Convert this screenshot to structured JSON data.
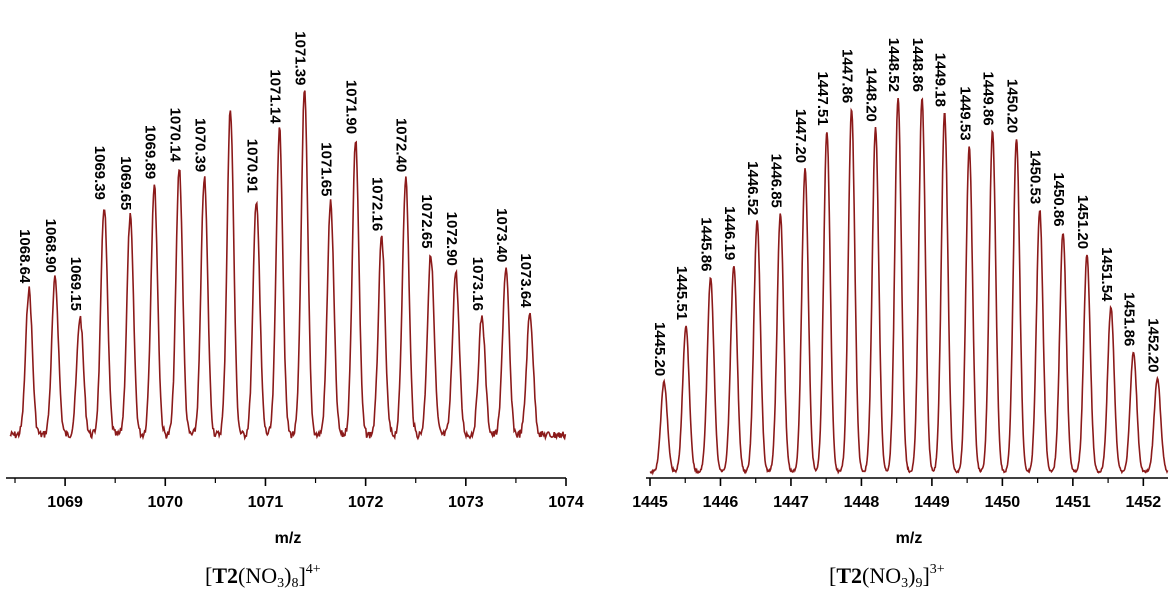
{
  "chart_data": [
    {
      "type": "line",
      "xlabel": "m/z",
      "xlim": [
        1068.45,
        1074.0
      ],
      "xticks": [
        "1069",
        "1070",
        "1071",
        "1072",
        "1073",
        "1074"
      ],
      "line_color": "#8b1a1a",
      "peaks": [
        {
          "x": 1068.64,
          "label": "1068.64",
          "rel_intensity": 0.42
        },
        {
          "x": 1068.9,
          "label": "1068.90",
          "rel_intensity": 0.45
        },
        {
          "x": 1069.15,
          "label": "1069.15",
          "rel_intensity": 0.34
        },
        {
          "x": 1069.39,
          "label": "1069.39",
          "rel_intensity": 0.66
        },
        {
          "x": 1069.65,
          "label": "1069.65",
          "rel_intensity": 0.63
        },
        {
          "x": 1069.89,
          "label": "1069.89",
          "rel_intensity": 0.72
        },
        {
          "x": 1070.14,
          "label": "1070.14",
          "rel_intensity": 0.77
        },
        {
          "x": 1070.39,
          "label": "1070.39",
          "rel_intensity": 0.74
        },
        {
          "x": 1070.65,
          "label": "",
          "rel_intensity": 0.94
        },
        {
          "x": 1070.91,
          "label": "1070.91",
          "rel_intensity": 0.68
        },
        {
          "x": 1071.14,
          "label": "1071.14",
          "rel_intensity": 0.88
        },
        {
          "x": 1071.39,
          "label": "1071.39",
          "rel_intensity": 0.99
        },
        {
          "x": 1071.65,
          "label": "1071.65",
          "rel_intensity": 0.67
        },
        {
          "x": 1071.9,
          "label": "1071.90",
          "rel_intensity": 0.85
        },
        {
          "x": 1072.16,
          "label": "1072.16",
          "rel_intensity": 0.57
        },
        {
          "x": 1072.4,
          "label": "1072.40",
          "rel_intensity": 0.74
        },
        {
          "x": 1072.65,
          "label": "1072.65",
          "rel_intensity": 0.52
        },
        {
          "x": 1072.9,
          "label": "1072.90",
          "rel_intensity": 0.47
        },
        {
          "x": 1073.16,
          "label": "1073.16",
          "rel_intensity": 0.34
        },
        {
          "x": 1073.4,
          "label": "1073.40",
          "rel_intensity": 0.48
        },
        {
          "x": 1073.64,
          "label": "1073.64",
          "rel_intensity": 0.35
        }
      ]
    },
    {
      "type": "line",
      "xlabel": "m/z",
      "xlim": [
        1445.0,
        1452.35
      ],
      "xticks": [
        "1445",
        "1446",
        "1447",
        "1448",
        "1449",
        "1450",
        "1451",
        "1452"
      ],
      "line_color": "#8b1a1a",
      "peaks": [
        {
          "x": 1445.2,
          "label": "1445.20",
          "rel_intensity": 0.24
        },
        {
          "x": 1445.51,
          "label": "1445.51",
          "rel_intensity": 0.39
        },
        {
          "x": 1445.86,
          "label": "1445.86",
          "rel_intensity": 0.52
        },
        {
          "x": 1446.19,
          "label": "1446.19",
          "rel_intensity": 0.55
        },
        {
          "x": 1446.52,
          "label": "1446.52",
          "rel_intensity": 0.67
        },
        {
          "x": 1446.85,
          "label": "1446.85",
          "rel_intensity": 0.69
        },
        {
          "x": 1447.2,
          "label": "1447.20",
          "rel_intensity": 0.81
        },
        {
          "x": 1447.51,
          "label": "1447.51",
          "rel_intensity": 0.91
        },
        {
          "x": 1447.86,
          "label": "1447.86",
          "rel_intensity": 0.97
        },
        {
          "x": 1448.2,
          "label": "1448.20",
          "rel_intensity": 0.92
        },
        {
          "x": 1448.52,
          "label": "1448.52",
          "rel_intensity": 1.0
        },
        {
          "x": 1448.86,
          "label": "1448.86",
          "rel_intensity": 1.0
        },
        {
          "x": 1449.18,
          "label": "1449.18",
          "rel_intensity": 0.96
        },
        {
          "x": 1449.53,
          "label": "1449.53",
          "rel_intensity": 0.87
        },
        {
          "x": 1449.86,
          "label": "1449.86",
          "rel_intensity": 0.91
        },
        {
          "x": 1450.2,
          "label": "1450.20",
          "rel_intensity": 0.89
        },
        {
          "x": 1450.53,
          "label": "1450.53",
          "rel_intensity": 0.7
        },
        {
          "x": 1450.86,
          "label": "1450.86",
          "rel_intensity": 0.64
        },
        {
          "x": 1451.2,
          "label": "1451.20",
          "rel_intensity": 0.58
        },
        {
          "x": 1451.54,
          "label": "1451.54",
          "rel_intensity": 0.44
        },
        {
          "x": 1451.86,
          "label": "1451.86",
          "rel_intensity": 0.32
        },
        {
          "x": 1452.2,
          "label": "1452.20",
          "rel_intensity": 0.25
        }
      ]
    }
  ],
  "captions": {
    "left": {
      "bold": "T2",
      "formula": "NO",
      "sub1": "3",
      "sub2": "8",
      "charge": "4+"
    },
    "right": {
      "bold": "T2",
      "formula": "NO",
      "sub1": "3",
      "sub2": "9",
      "charge": "3+"
    }
  }
}
